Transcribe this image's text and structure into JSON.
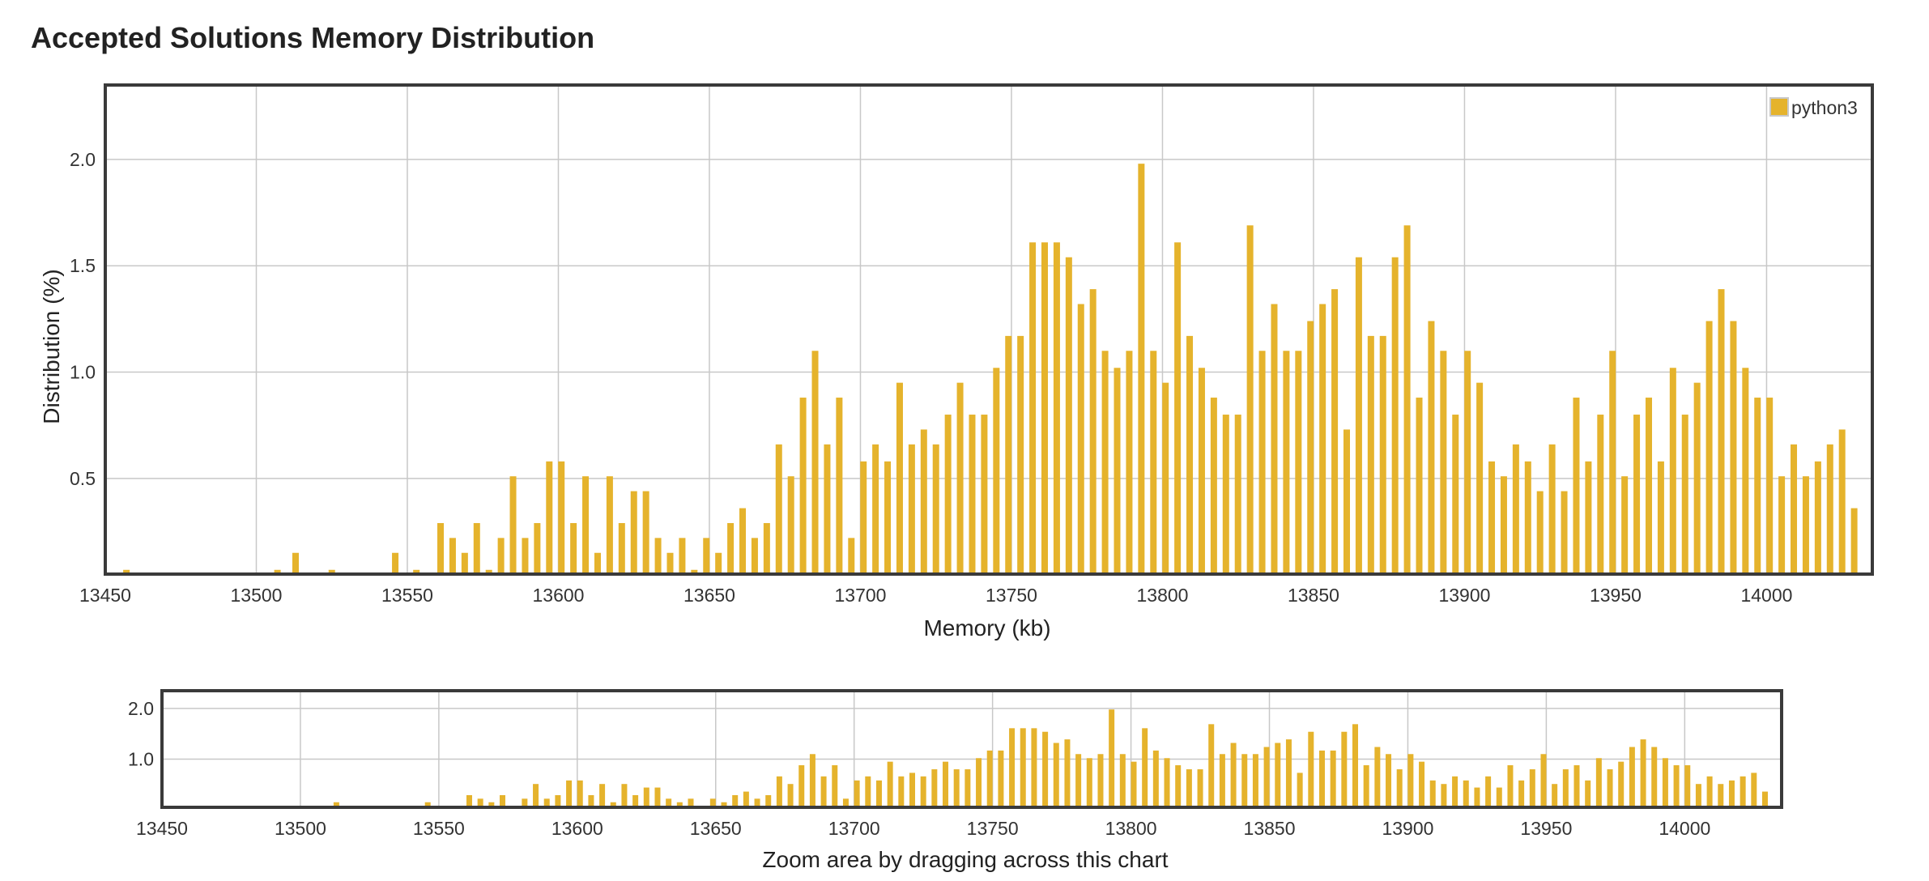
{
  "title": "Accepted Solutions Memory Distribution",
  "colors": {
    "bar": "#e5b32c",
    "grid": "#c8c8c8",
    "frame": "#3a3a3a"
  },
  "chart_data": {
    "type": "bar",
    "title": "Accepted Solutions Memory Distribution",
    "xlabel": "Memory (kb)",
    "ylabel": "Distribution (%)",
    "xlim": [
      13450,
      14035
    ],
    "ylim": [
      0.05,
      2.35
    ],
    "xticks": [
      13450,
      13500,
      13550,
      13600,
      13650,
      13700,
      13750,
      13800,
      13850,
      13900,
      13950,
      14000
    ],
    "yticks": [
      0.5,
      1.0,
      1.5,
      2.0
    ],
    "grid": true,
    "legend_position": "top-right",
    "series": [
      {
        "name": "python3",
        "x": [
          13457,
          13507,
          13513,
          13525,
          13546,
          13553,
          13561,
          13565,
          13569,
          13573,
          13577,
          13581,
          13585,
          13589,
          13593,
          13597,
          13601,
          13605,
          13609,
          13613,
          13617,
          13621,
          13625,
          13629,
          13633,
          13637,
          13641,
          13645,
          13649,
          13653,
          13657,
          13661,
          13665,
          13669,
          13673,
          13677,
          13681,
          13685,
          13689,
          13693,
          13697,
          13701,
          13705,
          13709,
          13713,
          13717,
          13721,
          13725,
          13729,
          13733,
          13737,
          13741,
          13745,
          13749,
          13753,
          13757,
          13761,
          13765,
          13769,
          13773,
          13777,
          13781,
          13785,
          13789,
          13793,
          13797,
          13801,
          13805,
          13809,
          13813,
          13817,
          13821,
          13825,
          13829,
          13833,
          13837,
          13841,
          13845,
          13849,
          13853,
          13857,
          13861,
          13865,
          13869,
          13873,
          13877,
          13881,
          13885,
          13889,
          13893,
          13897,
          13901,
          13905,
          13909,
          13913,
          13917,
          13921,
          13925,
          13929,
          13933,
          13937,
          13941,
          13945,
          13949,
          13953,
          13957,
          13961,
          13965,
          13969,
          13973,
          13977,
          13981,
          13985,
          13989,
          13993,
          13997,
          14001,
          14005,
          14009,
          14013,
          14017,
          14021,
          14025,
          14029
        ],
        "values": [
          0.07,
          0.07,
          0.15,
          0.07,
          0.15,
          0.07,
          0.29,
          0.22,
          0.15,
          0.29,
          0.07,
          0.22,
          0.51,
          0.22,
          0.29,
          0.58,
          0.58,
          0.29,
          0.51,
          0.15,
          0.51,
          0.29,
          0.44,
          0.44,
          0.22,
          0.15,
          0.22,
          0.07,
          0.22,
          0.15,
          0.29,
          0.36,
          0.22,
          0.29,
          0.66,
          0.51,
          0.88,
          1.1,
          0.66,
          0.88,
          0.22,
          0.58,
          0.66,
          0.58,
          0.95,
          0.66,
          0.73,
          0.66,
          0.8,
          0.95,
          0.8,
          0.8,
          1.02,
          1.17,
          1.17,
          1.61,
          1.61,
          1.61,
          1.54,
          1.32,
          1.39,
          1.1,
          1.02,
          1.1,
          1.98,
          1.1,
          0.95,
          1.61,
          1.17,
          1.02,
          0.88,
          0.8,
          0.8,
          1.69,
          1.1,
          1.32,
          1.1,
          1.1,
          1.24,
          1.32,
          1.39,
          0.73,
          1.54,
          1.17,
          1.17,
          1.54,
          1.69,
          0.88,
          1.24,
          1.1,
          0.8,
          1.1,
          0.95,
          0.58,
          0.51,
          0.66,
          0.58,
          0.44,
          0.66,
          0.44,
          0.88,
          0.58,
          0.8,
          1.1,
          0.51,
          0.8,
          0.88,
          0.58,
          1.02,
          0.8,
          0.95,
          1.24,
          1.39,
          1.24,
          1.02,
          0.88,
          0.88,
          0.51,
          0.66,
          0.51,
          0.58,
          0.66,
          0.73,
          0.36
        ]
      }
    ]
  },
  "navigator": {
    "ylim": [
      0.05,
      2.35
    ],
    "yticks": [
      1.0,
      2.0
    ],
    "caption": "Zoom area by dragging across this chart"
  }
}
